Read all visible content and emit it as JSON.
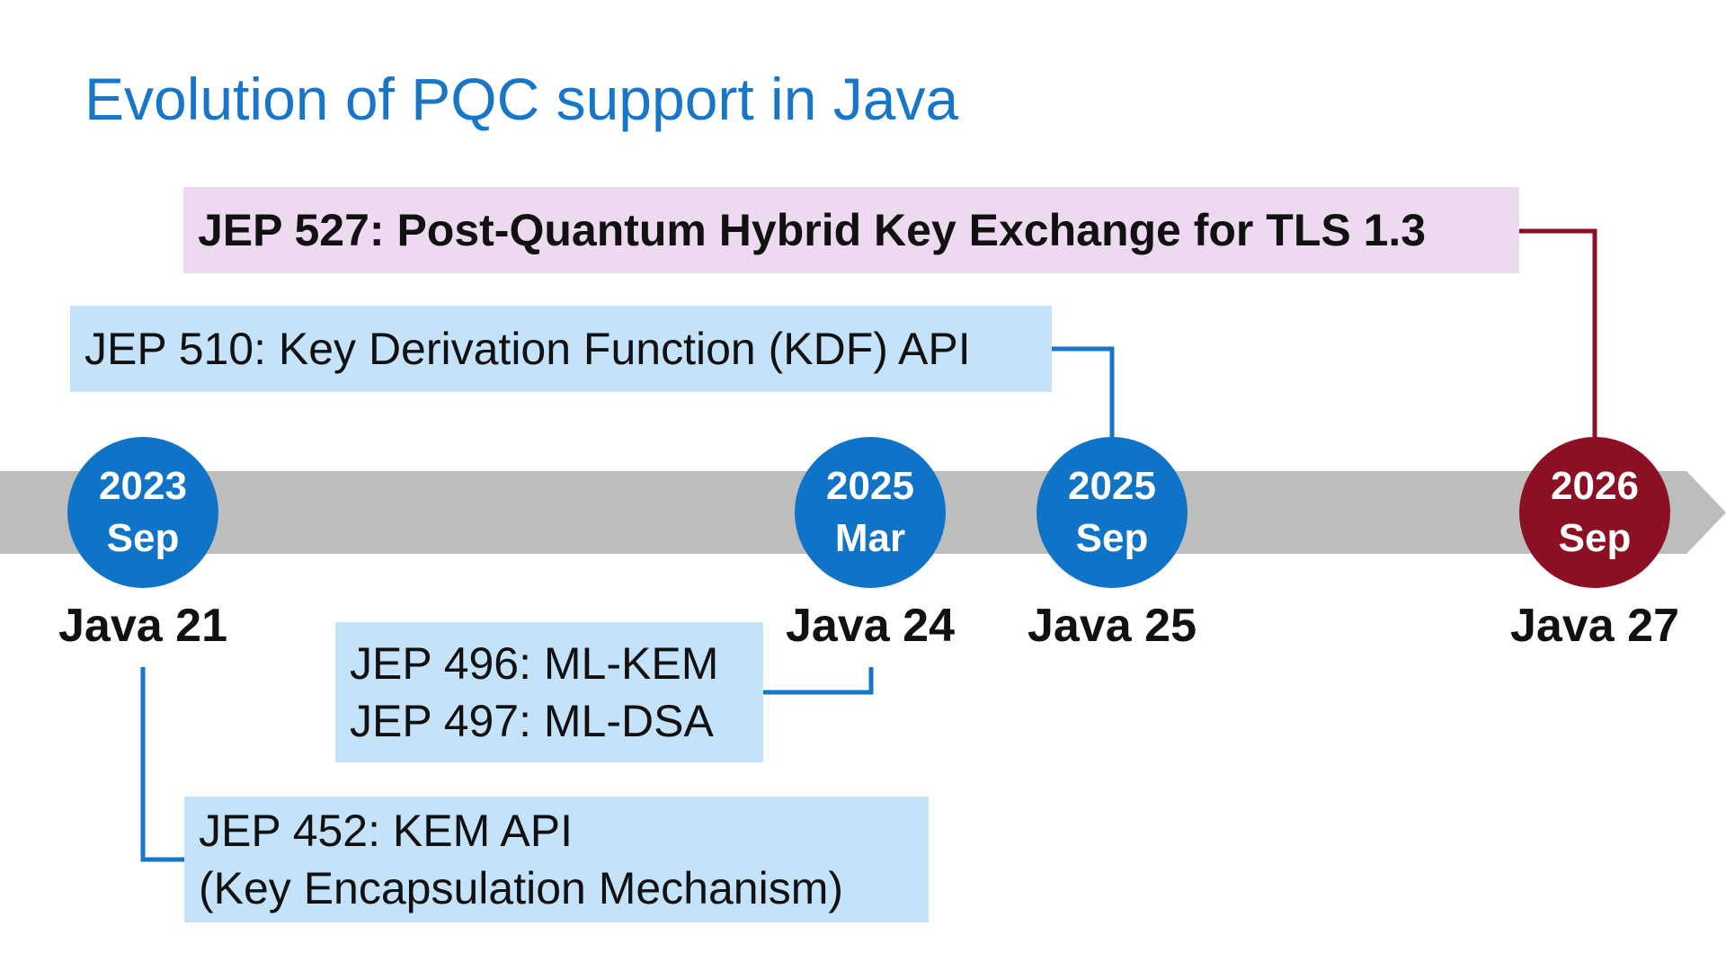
{
  "title": "Evolution of PQC support in Java",
  "colors": {
    "title": "#1876c9",
    "timeline_arrow": "#bdbdbd",
    "milestone_blue": "#0f73c7",
    "milestone_red": "#8c1023",
    "box_blue": "#c4e2f9",
    "box_pink": "#eedaf0"
  },
  "milestones": [
    {
      "year": "2023",
      "month": "Sep",
      "release": "Java 21"
    },
    {
      "year": "2025",
      "month": "Mar",
      "release": "Java 24"
    },
    {
      "year": "2025",
      "month": "Sep",
      "release": "Java 25"
    },
    {
      "year": "2026",
      "month": "Sep",
      "release": "Java 27"
    }
  ],
  "jeps": {
    "jep527": "JEP 527: Post-Quantum Hybrid Key Exchange for TLS 1.3",
    "jep510": "JEP 510: Key Derivation Function (KDF) API",
    "jep496": "JEP 496: ML-KEM",
    "jep497": "JEP 497: ML-DSA",
    "jep452_line1": "JEP 452: KEM API",
    "jep452_line2": "(Key Encapsulation Mechanism)"
  }
}
